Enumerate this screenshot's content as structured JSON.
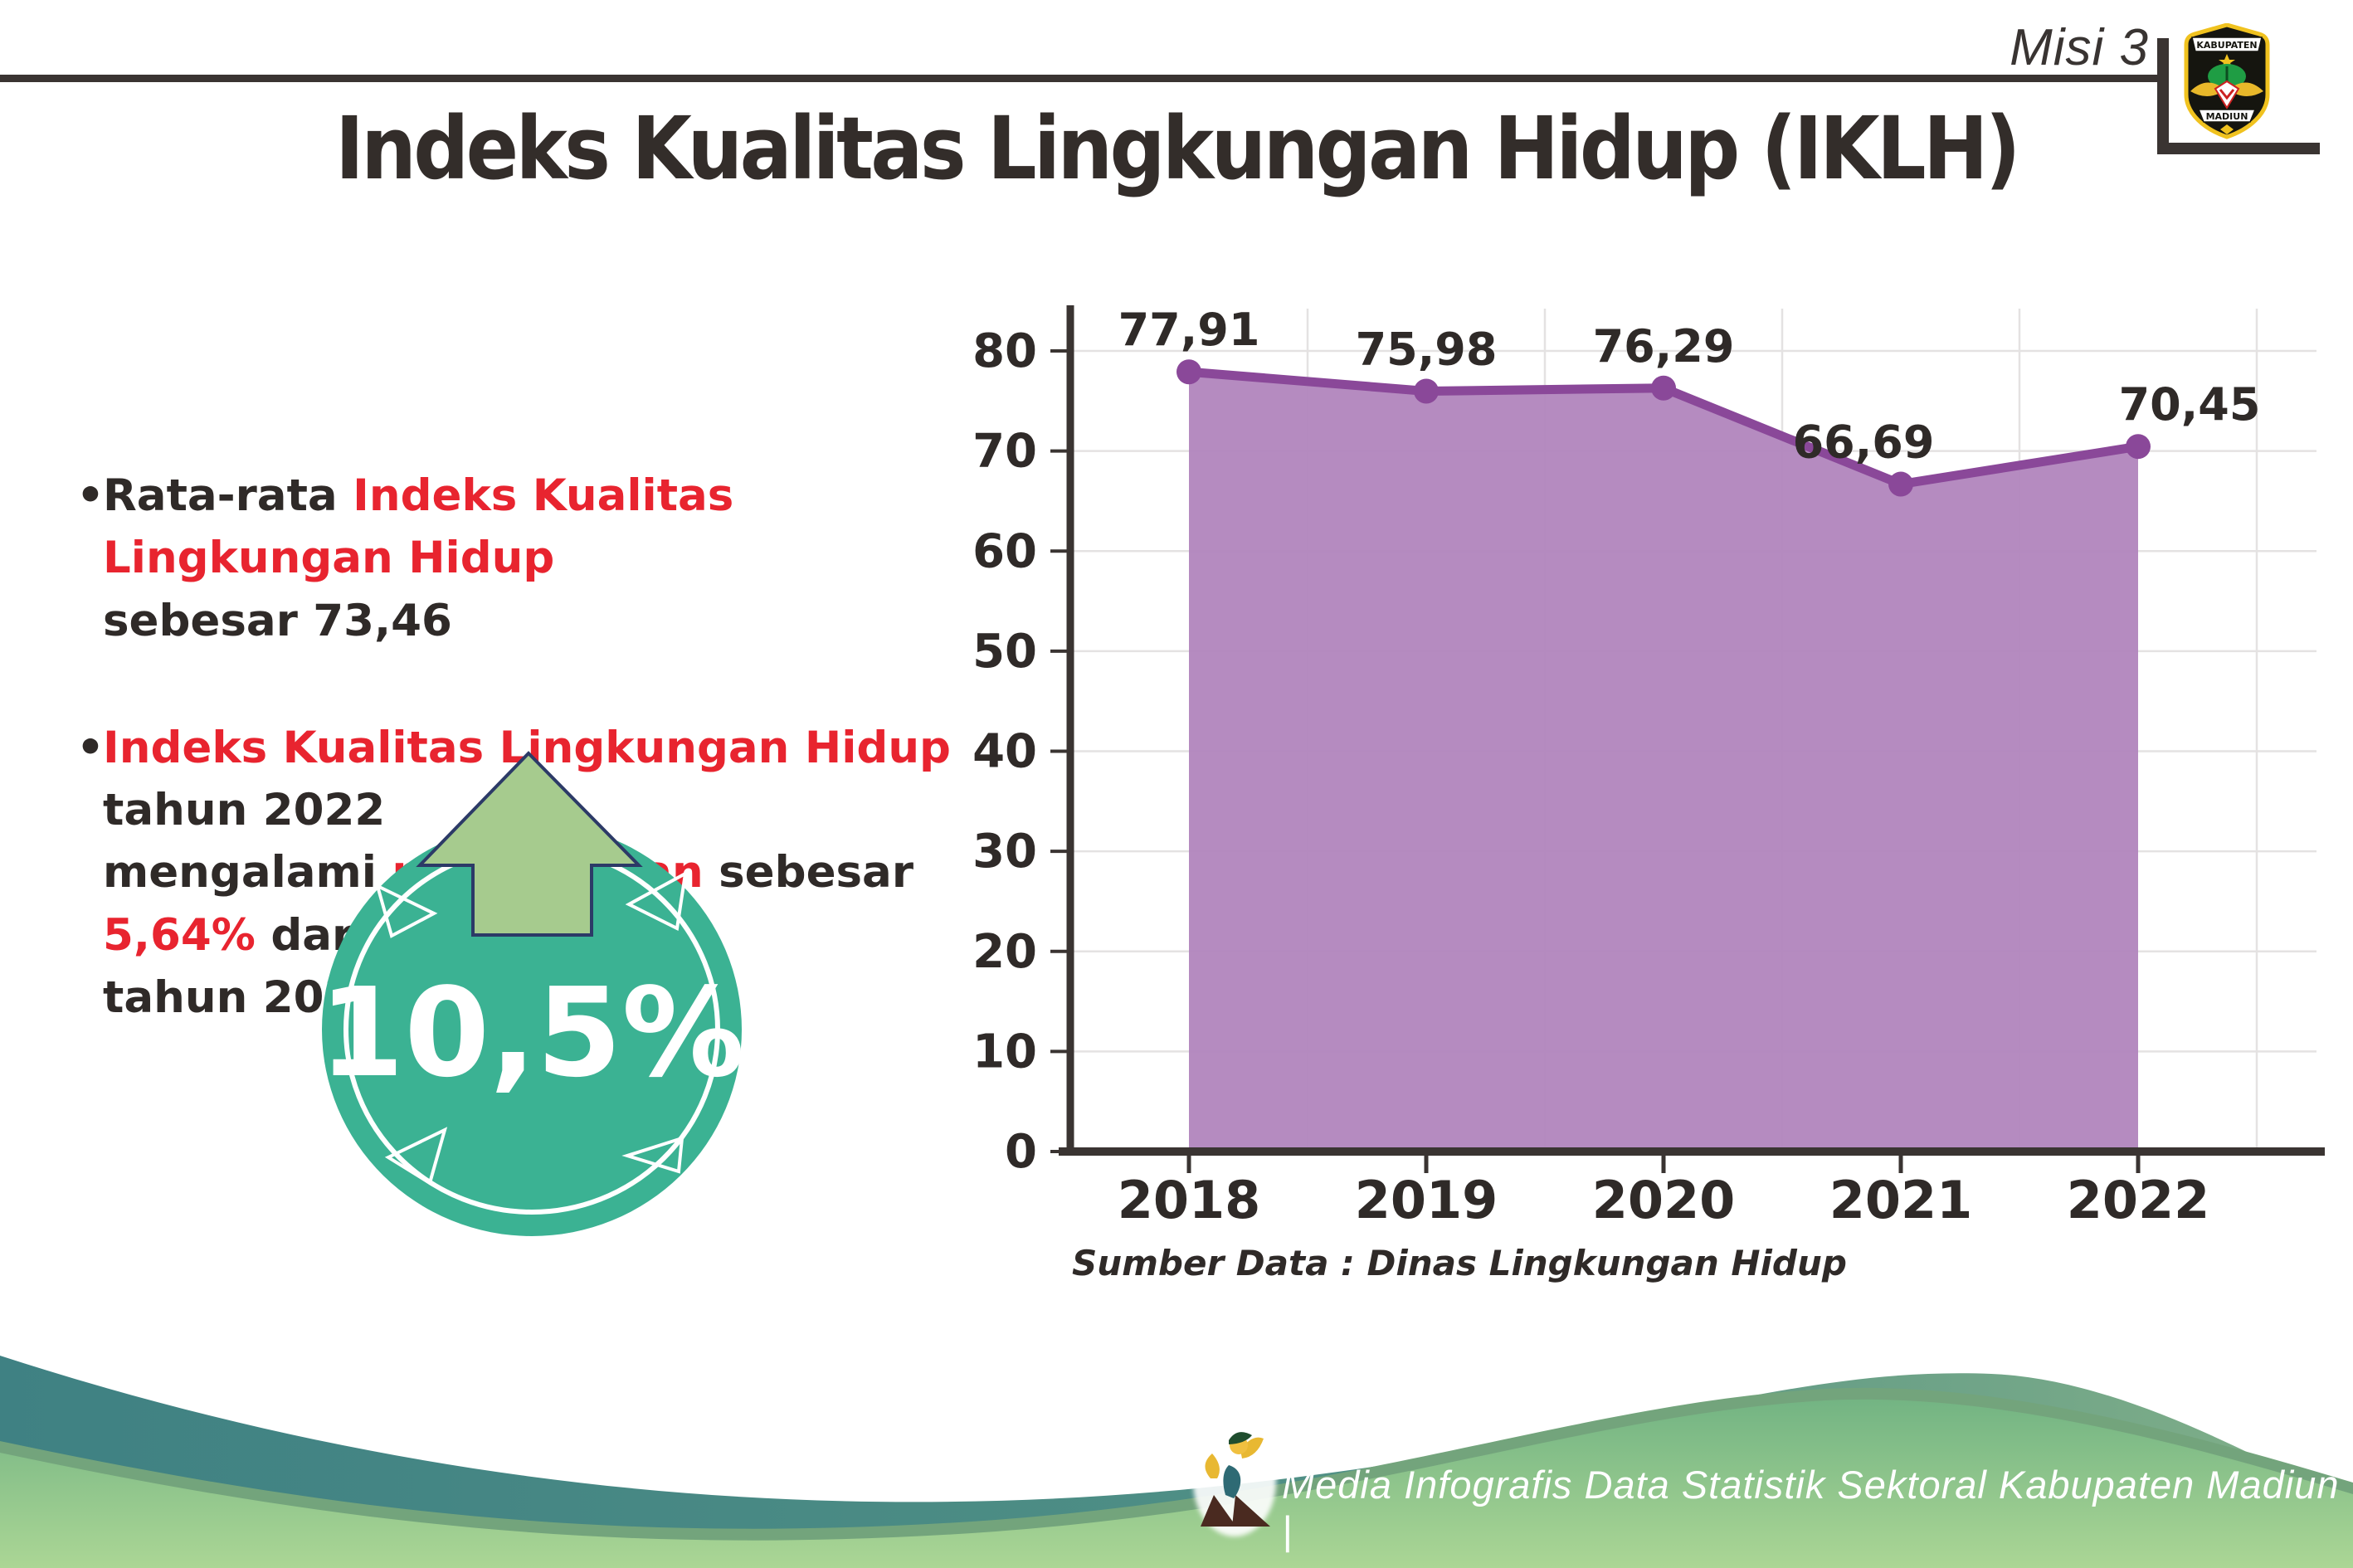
{
  "header": {
    "tag": "Misi 3",
    "logo": {
      "top_text": "KABUPATEN",
      "bottom_text": "MADIUN"
    }
  },
  "title": "Indeks Kualitas Lingkungan Hidup (IKLH)",
  "bullets": [
    {
      "segments": [
        {
          "text": "Rata-rata ",
          "color": "dark"
        },
        {
          "text": "Indeks Kualitas Lingkungan Hidup",
          "color": "red"
        },
        {
          "break": true
        },
        {
          "text": "sebesar 73,46",
          "color": "dark"
        }
      ]
    },
    {
      "segments": [
        {
          "text": "Indeks Kualitas Lingkungan Hidup",
          "color": "red"
        },
        {
          "text": " tahun 2022",
          "color": "dark"
        },
        {
          "break": true
        },
        {
          "text": "mengalami ",
          "color": "dark"
        },
        {
          "text": "peningkatan",
          "color": "red"
        },
        {
          "text": " sebesar ",
          "color": "dark"
        },
        {
          "text": "5,64%",
          "color": "red"
        },
        {
          "text": " dari",
          "color": "dark"
        },
        {
          "break": true
        },
        {
          "text": "tahun 2021",
          "color": "dark"
        }
      ]
    }
  ],
  "badge": {
    "value": "10,5%"
  },
  "chart_data": {
    "type": "area",
    "categories": [
      "2018",
      "2019",
      "2020",
      "2021",
      "2022"
    ],
    "values": [
      77.91,
      75.98,
      76.29,
      66.69,
      70.45
    ],
    "value_labels": [
      "77,91",
      "75,98",
      "76,29",
      "66,69",
      "70,45"
    ],
    "title": "",
    "xlabel": "",
    "ylabel": "",
    "ylim": [
      0,
      80
    ],
    "ytick_step": 10,
    "grid": true,
    "legend": "none",
    "line_color": "#8a4899",
    "fill_color": "#b286bd",
    "marker_color": "#8a4899",
    "source_note": "Sumber Data : Dinas Lingkungan Hidup"
  },
  "footer": {
    "caption": "Media Infografis Data Statistik Sektoral Kabupaten Madiun |"
  },
  "colors": {
    "accent_red": "#e8242f",
    "text_dark": "#2f2a28",
    "axis_dark": "#3a3432",
    "gridline": "#e4e2e2",
    "badge_teal": "#3bb293",
    "arrow_green": "#a6cb8e",
    "arrow_outline": "#2c3a67",
    "wave_teal": "#3f8183",
    "wave_sage": "#82b089",
    "wave_edge": "#73a47c",
    "wave_light_top": "#73b483",
    "wave_light_bottom": "#abd695"
  }
}
